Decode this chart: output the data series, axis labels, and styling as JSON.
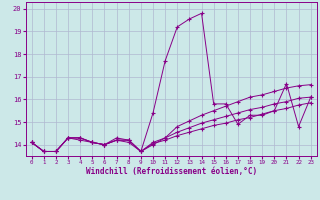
{
  "xlabel": "Windchill (Refroidissement éolien,°C)",
  "xlim": [
    -0.5,
    23.5
  ],
  "ylim": [
    13.5,
    20.3
  ],
  "yticks": [
    14,
    15,
    16,
    17,
    18,
    19,
    20
  ],
  "xticks": [
    0,
    1,
    2,
    3,
    4,
    5,
    6,
    7,
    8,
    9,
    10,
    11,
    12,
    13,
    14,
    15,
    16,
    17,
    18,
    19,
    20,
    21,
    22,
    23
  ],
  "bg_color": "#cce8e8",
  "grid_color": "#b0b8d0",
  "line_color": "#880088",
  "series": [
    [
      14.1,
      13.7,
      13.7,
      14.3,
      14.2,
      14.1,
      14.0,
      14.2,
      14.2,
      13.7,
      15.4,
      17.7,
      19.2,
      19.55,
      19.8,
      15.8,
      15.8,
      14.9,
      15.3,
      15.3,
      15.5,
      16.7,
      14.8,
      16.1
    ],
    [
      14.1,
      13.7,
      13.7,
      14.3,
      14.3,
      14.1,
      14.0,
      14.2,
      14.1,
      13.7,
      14.05,
      14.2,
      14.4,
      14.55,
      14.7,
      14.85,
      14.95,
      15.1,
      15.2,
      15.35,
      15.5,
      15.6,
      15.75,
      15.85
    ],
    [
      14.1,
      13.7,
      13.7,
      14.3,
      14.3,
      14.1,
      14.0,
      14.2,
      14.2,
      13.7,
      14.1,
      14.3,
      14.55,
      14.75,
      14.95,
      15.1,
      15.25,
      15.4,
      15.55,
      15.65,
      15.8,
      15.9,
      16.05,
      16.1
    ],
    [
      14.1,
      13.7,
      13.7,
      14.3,
      14.3,
      14.1,
      14.0,
      14.3,
      14.2,
      13.7,
      14.0,
      14.3,
      14.8,
      15.05,
      15.3,
      15.5,
      15.7,
      15.9,
      16.1,
      16.2,
      16.35,
      16.5,
      16.6,
      16.65
    ]
  ]
}
